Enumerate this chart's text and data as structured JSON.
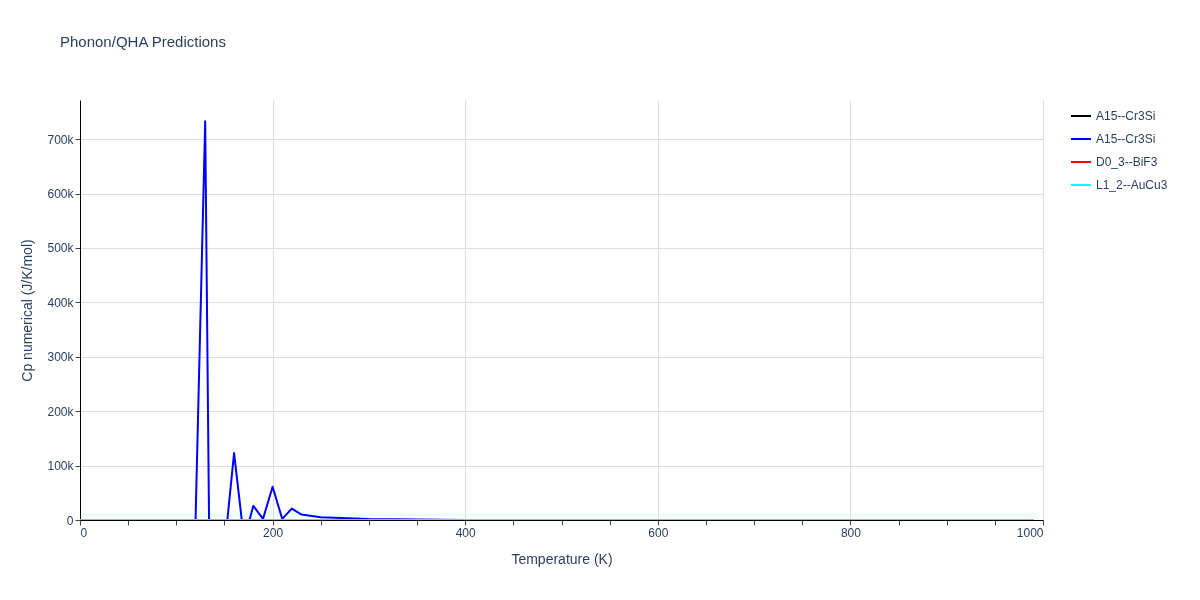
{
  "chart_data": {
    "type": "line",
    "title": "Phonon/QHA Predictions",
    "xlabel": "Temperature (K)",
    "ylabel": "Cp numerical (J/K/mol)",
    "xlim": [
      0,
      1000
    ],
    "ylim": [
      0,
      772000
    ],
    "xticks": [
      0,
      {
        "value": 50,
        "label": null
      },
      {
        "value": 100,
        "label": null
      },
      {
        "value": 150,
        "label": null
      },
      200,
      {
        "value": 250,
        "label": null
      },
      {
        "value": 300,
        "label": null
      },
      {
        "value": 350,
        "label": null
      },
      400,
      {
        "value": 450,
        "label": null
      },
      {
        "value": 500,
        "label": null
      },
      {
        "value": 550,
        "label": null
      },
      600,
      {
        "value": 650,
        "label": null
      },
      {
        "value": 700,
        "label": null
      },
      {
        "value": 750,
        "label": null
      },
      800,
      {
        "value": 850,
        "label": null
      },
      {
        "value": 900,
        "label": null
      },
      {
        "value": 950,
        "label": null
      },
      1000
    ],
    "yticks": [
      0,
      {
        "value": 100000,
        "label": "100k"
      },
      {
        "value": 200000,
        "label": "200k"
      },
      {
        "value": 300000,
        "label": "300k"
      },
      {
        "value": 400000,
        "label": "400k"
      },
      {
        "value": 500000,
        "label": "500k"
      },
      {
        "value": 600000,
        "label": "600k"
      },
      {
        "value": 700000,
        "label": "700k"
      }
    ],
    "grid": true,
    "legend": "top right",
    "line_style": "solid",
    "marker": "none",
    "series": [
      {
        "name": "A15--Cr3Si",
        "color": "#000000"
      },
      {
        "name": "A15--Cr3Si",
        "color": "#0000ff",
        "x": [
          0,
          120,
          130,
          134,
          153,
          160,
          168,
          176,
          180,
          190,
          200,
          210,
          220,
          230,
          250,
          300,
          400,
          990
        ],
        "values": [
          0,
          0,
          733000,
          0,
          0,
          123000,
          0,
          0,
          26000,
          2000,
          61000,
          2000,
          21000,
          10000,
          5000,
          2000,
          0,
          0
        ]
      },
      {
        "name": "D0_3--BiF3",
        "color": "#ff0000"
      },
      {
        "name": "L1_2--AuCu3",
        "color": "#00ffff",
        "x": [
          0,
          990
        ],
        "values": [
          0,
          0
        ]
      }
    ]
  }
}
